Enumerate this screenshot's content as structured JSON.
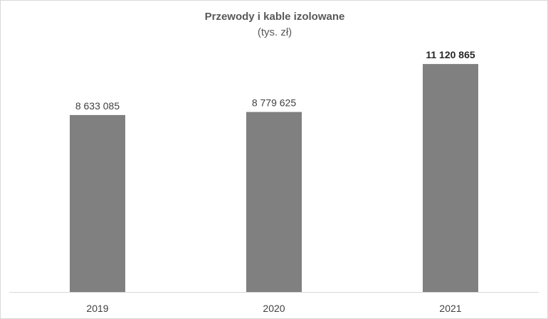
{
  "chart_data": {
    "type": "bar",
    "title": "Przewody i kable izolowane",
    "subtitle": "(tys. zł)",
    "categories": [
      "2019",
      "2020",
      "2021"
    ],
    "values": [
      8633085,
      8779625,
      11120865
    ],
    "value_labels": [
      "8 633 085",
      "8 779 625",
      "11 120 865"
    ],
    "highlighted_label_index": 2,
    "xlabel": "",
    "ylabel": "",
    "ylim": [
      0,
      12000000
    ],
    "grid": false,
    "legend": "none",
    "bar_color": "#808080"
  }
}
